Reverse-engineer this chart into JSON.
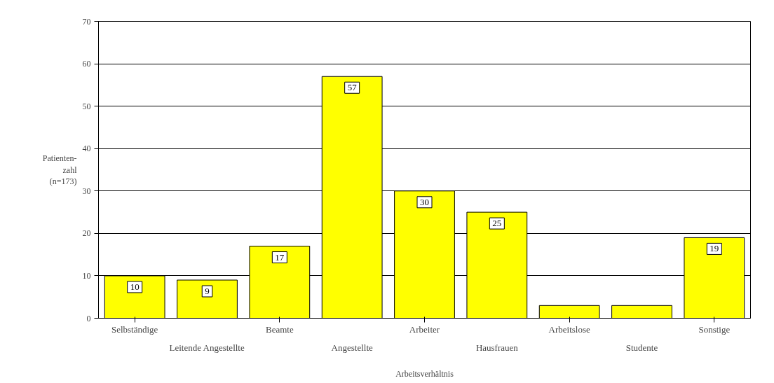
{
  "chart_data": {
    "type": "bar",
    "xlabel": "Arbeitsverhältnis",
    "ylabel": "Patienten-\nzahl\n(n=173)",
    "categories": [
      "Selbständige",
      "Leitende Angestellte",
      "Beamte",
      "Angestellte",
      "Arbeiter",
      "Hausfrauen",
      "Arbeitslose",
      "Studente",
      "Sonstige"
    ],
    "values": [
      10,
      9,
      17,
      57,
      30,
      25,
      3,
      3,
      19
    ],
    "value_labels": [
      "10",
      "9",
      "17",
      "57",
      "30",
      "25",
      null,
      null,
      "19"
    ],
    "color": "#ffff00",
    "ylim": [
      0,
      70
    ],
    "yticks": [
      0,
      10,
      20,
      30,
      40,
      50,
      60,
      70
    ],
    "grid": "y"
  }
}
